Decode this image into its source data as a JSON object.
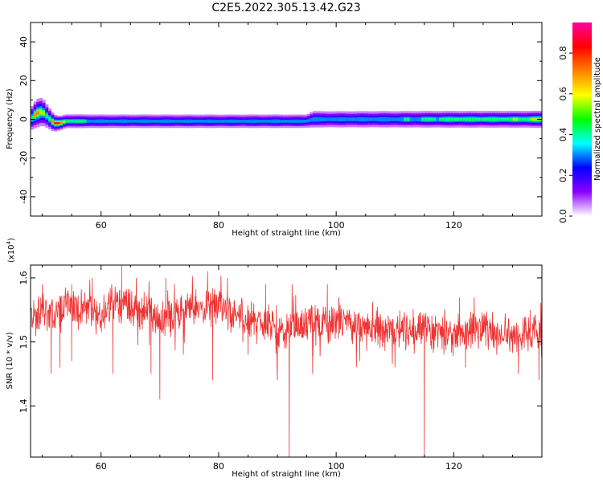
{
  "title": "C2E5.2022.305.13.42.G23",
  "chart_data": [
    {
      "type": "heatmap",
      "xlabel": "Height of straight line (km)",
      "ylabel": "Frequency (Hz)",
      "xlim": [
        48,
        135
      ],
      "ylim": [
        -50,
        50
      ],
      "xticks": [
        60,
        80,
        100,
        120
      ],
      "yticks": [
        -40,
        -20,
        0,
        20,
        40
      ],
      "ridge": {
        "x": [
          48,
          49,
          50,
          51,
          52,
          53,
          54,
          56,
          60,
          70,
          80,
          90,
          95,
          96,
          97,
          100,
          110,
          120,
          130,
          135
        ],
        "frequency_hz": [
          0,
          3,
          4,
          1,
          -2,
          -2,
          -1,
          -1,
          -1,
          -1,
          -1,
          -1,
          -1,
          0,
          0,
          0,
          0,
          0,
          0,
          0
        ],
        "amplitude": [
          0.45,
          0.8,
          0.7,
          0.55,
          0.9,
          0.95,
          0.6,
          0.5,
          0.4,
          0.4,
          0.38,
          0.4,
          0.38,
          0.45,
          0.4,
          0.38,
          0.42,
          0.55,
          0.55,
          0.7
        ],
        "half_width_hz": [
          4,
          5,
          5,
          4,
          3,
          2.5,
          2.5,
          2.5,
          2.5,
          2.5,
          2.5,
          2.5,
          2.5,
          3,
          3,
          3,
          3,
          3,
          3,
          3
        ]
      },
      "colorbar": {
        "label": "Normalized spectral amplitude",
        "range": [
          0,
          0.95
        ],
        "ticks": [
          0.0,
          0.2,
          0.4,
          0.6,
          0.8
        ],
        "tick_labels": [
          "0.0",
          "0.2",
          "0.4",
          "0.6",
          "0.8"
        ],
        "colors": [
          "#ffffff",
          "#8c00ff",
          "#0000ff",
          "#00ffff",
          "#00ff00",
          "#ffff00",
          "#ff8000",
          "#ff0000",
          "#ff00a0"
        ]
      }
    },
    {
      "type": "line",
      "xlabel": "Height of straight line (km)",
      "ylabel": "SNR (10 * v/v)",
      "multiplier": "(x10",
      "multiplier_exp": "4",
      "multiplier_close": ")",
      "xlim": [
        48,
        135
      ],
      "ylim": [
        1.32,
        1.62
      ],
      "xticks": [
        60,
        80,
        100,
        120
      ],
      "yticks": [
        1.4,
        1.5,
        1.6
      ],
      "ytick_labels": [
        "1.4",
        "1.5",
        "1.6"
      ],
      "color": "#ee3333",
      "series": [
        {
          "x": [
            48,
            50,
            52,
            54,
            56,
            58,
            60,
            62,
            64,
            66,
            68,
            70,
            72,
            74,
            76,
            78,
            80,
            82,
            84,
            86,
            88,
            90,
            92,
            94,
            96,
            98,
            100,
            102,
            104,
            106,
            108,
            110,
            112,
            114,
            116,
            118,
            120,
            122,
            124,
            126,
            128,
            130,
            132,
            134,
            135
          ],
          "y": [
            1.54,
            1.55,
            1.54,
            1.56,
            1.55,
            1.55,
            1.54,
            1.56,
            1.56,
            1.55,
            1.55,
            1.53,
            1.54,
            1.55,
            1.55,
            1.55,
            1.56,
            1.54,
            1.54,
            1.53,
            1.53,
            1.52,
            1.52,
            1.53,
            1.53,
            1.53,
            1.53,
            1.53,
            1.53,
            1.52,
            1.52,
            1.52,
            1.52,
            1.52,
            1.52,
            1.51,
            1.51,
            1.52,
            1.52,
            1.52,
            1.51,
            1.51,
            1.51,
            1.51,
            1.52
          ]
        }
      ],
      "dips": [
        {
          "x": 51.5,
          "y": 1.45
        },
        {
          "x": 53.0,
          "y": 1.46
        },
        {
          "x": 55.0,
          "y": 1.47
        },
        {
          "x": 62.0,
          "y": 1.45
        },
        {
          "x": 68.5,
          "y": 1.45
        },
        {
          "x": 70.0,
          "y": 1.41
        },
        {
          "x": 74.0,
          "y": 1.48
        },
        {
          "x": 79.0,
          "y": 1.44
        },
        {
          "x": 85.0,
          "y": 1.48
        },
        {
          "x": 90.0,
          "y": 1.44
        },
        {
          "x": 92.0,
          "y": 1.32
        },
        {
          "x": 96.0,
          "y": 1.45
        },
        {
          "x": 104.0,
          "y": 1.47
        },
        {
          "x": 110.0,
          "y": 1.46
        },
        {
          "x": 115.0,
          "y": 1.32
        },
        {
          "x": 122.0,
          "y": 1.46
        },
        {
          "x": 131.0,
          "y": 1.45
        },
        {
          "x": 134.5,
          "y": 1.44
        }
      ],
      "peaks": [
        {
          "x": 50.0,
          "y": 1.59
        },
        {
          "x": 55.0,
          "y": 1.59
        },
        {
          "x": 58.5,
          "y": 1.6
        },
        {
          "x": 63.5,
          "y": 1.62
        },
        {
          "x": 66.0,
          "y": 1.6
        },
        {
          "x": 71.0,
          "y": 1.6
        },
        {
          "x": 81.5,
          "y": 1.6
        },
        {
          "x": 88.0,
          "y": 1.59
        },
        {
          "x": 92.5,
          "y": 1.59
        },
        {
          "x": 98.5,
          "y": 1.59
        },
        {
          "x": 121.0,
          "y": 1.57
        },
        {
          "x": 133.0,
          "y": 1.55
        }
      ],
      "noise_amplitude": 0.035
    }
  ]
}
